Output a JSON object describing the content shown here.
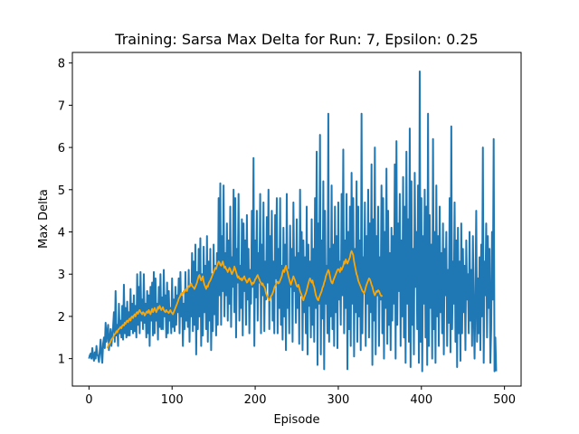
{
  "chart_data": {
    "type": "line",
    "title": "Training: Sarsa Max Delta for Run: 7, Epsilon: 0.25",
    "xlabel": "Episode",
    "ylabel": "Max Delta",
    "xlim": [
      -20,
      520
    ],
    "ylim": [
      0.35,
      8.25
    ],
    "xticks": [
      0,
      100,
      200,
      300,
      400,
      500
    ],
    "yticks": [
      1,
      2,
      3,
      4,
      5,
      6,
      7,
      8
    ],
    "grid": false,
    "legend": "none",
    "series": [
      {
        "color": "#1f77b4",
        "values": [
          1.0,
          1.08,
          1.12,
          1.0,
          1.25,
          1.05,
          0.95,
          1.15,
          1.0,
          1.3,
          1.1,
          1.05,
          0.92,
          1.2,
          1.45,
          1.1,
          0.9,
          1.35,
          1.5,
          1.25,
          1.85,
          1.4,
          1.6,
          1.8,
          1.2,
          1.45,
          1.7,
          1.3,
          1.55,
          1.75,
          2.1,
          1.4,
          2.6,
          1.55,
          1.8,
          1.3,
          2.3,
          1.6,
          1.9,
          1.5,
          2.25,
          1.45,
          2.75,
          1.6,
          2.2,
          1.5,
          2.35,
          1.55,
          2.1,
          1.55,
          2.65,
          1.7,
          2.3,
          1.6,
          2.5,
          1.65,
          2.25,
          1.5,
          3.0,
          1.8,
          2.7,
          1.6,
          3.05,
          1.9,
          2.4,
          1.7,
          3.0,
          1.85,
          2.3,
          1.5,
          2.6,
          1.6,
          2.5,
          1.3,
          2.7,
          1.9,
          2.8,
          1.55,
          3.05,
          1.6,
          2.9,
          1.9,
          2.3,
          1.45,
          2.7,
          1.75,
          3.0,
          1.7,
          2.45,
          1.7,
          3.1,
          2.0,
          2.5,
          1.5,
          2.8,
          1.6,
          2.6,
          1.9,
          2.2,
          1.6,
          2.9,
          1.75,
          2.4,
          1.65,
          2.7,
          1.8,
          2.5,
          2.1,
          2.9,
          1.6,
          3.05,
          2.0,
          2.55,
          1.3,
          2.3,
          1.7,
          3.05,
          1.9,
          2.6,
          1.75,
          3.1,
          1.4,
          2.7,
          2.0,
          3.5,
          1.65,
          3.3,
          1.8,
          3.7,
          1.1,
          3.05,
          1.7,
          3.6,
          2.0,
          3.85,
          1.3,
          3.0,
          1.55,
          3.65,
          2.1,
          3.2,
          1.7,
          3.9,
          1.4,
          3.3,
          1.9,
          3.6,
          1.2,
          3.0,
          1.65,
          3.7,
          2.05,
          3.2,
          1.55,
          3.5,
          1.8,
          4.8,
          2.5,
          5.15,
          1.8,
          3.9,
          2.6,
          5.1,
          2.0,
          3.5,
          2.5,
          4.2,
          1.9,
          3.8,
          2.3,
          4.6,
          1.75,
          3.4,
          2.7,
          5.0,
          2.1,
          4.8,
          1.5,
          3.6,
          2.8,
          4.9,
          1.9,
          3.2,
          2.2,
          4.3,
          1.55,
          4.2,
          2.6,
          3.8,
          1.8,
          4.4,
          2.4,
          3.6,
          1.6,
          3.1,
          2.3,
          4.5,
          2.7,
          5.75,
          1.3,
          3.8,
          2.45,
          4.5,
          1.9,
          3.5,
          2.8,
          4.9,
          1.6,
          3.7,
          2.5,
          4.7,
          1.65,
          3.3,
          2.4,
          4.35,
          2.8,
          5.0,
          1.7,
          3.9,
          2.5,
          4.5,
          1.9,
          3.3,
          1.6,
          4.4,
          2.9,
          4.8,
          1.6,
          3.6,
          2.2,
          4.8,
          1.8,
          3.2,
          1.45,
          4.1,
          2.0,
          3.7,
          1.2,
          4.9,
          2.2,
          3.1,
          1.6,
          4.15,
          2.7,
          3.6,
          1.4,
          4.7,
          2.6,
          3.4,
          1.85,
          4.3,
          2.2,
          3.5,
          1.35,
          5.0,
          2.5,
          4.0,
          1.2,
          3.8,
          2.1,
          3.4,
          1.6,
          4.6,
          1.1,
          3.7,
          2.25,
          3.3,
          1.5,
          4.3,
          1.8,
          3.6,
          1.4,
          4.8,
          2.2,
          5.9,
          0.85,
          4.2,
          2.3,
          6.3,
          1.1,
          3.8,
          1.95,
          5.2,
          0.75,
          4.5,
          2.3,
          3.2,
          1.6,
          6.8,
          1.4,
          3.6,
          2.0,
          5.1,
          1.7,
          3.7,
          1.3,
          4.6,
          2.1,
          3.9,
          1.25,
          4.7,
          2.4,
          3.3,
          1.8,
          4.9,
          2.5,
          5.95,
          1.6,
          3.8,
          2.2,
          4.9,
          0.75,
          4.0,
          1.7,
          4.6,
          1.3,
          5.4,
          2.3,
          4.8,
          1.05,
          3.6,
          2.1,
          5.2,
          1.4,
          4.6,
          2.0,
          3.8,
          1.2,
          6.8,
          1.6,
          3.4,
          2.6,
          4.7,
          1.3,
          3.9,
          2.3,
          5.0,
          1.5,
          4.2,
          2.1,
          5.6,
          0.85,
          4.3,
          1.9,
          6.0,
          1.1,
          3.9,
          2.5,
          4.6,
          1.3,
          3.4,
          2.4,
          5.1,
          1.6,
          4.8,
          1.0,
          4.0,
          2.2,
          5.5,
          1.35,
          4.5,
          1.8,
          3.5,
          1.2,
          4.1,
          1.9,
          3.9,
          2.3,
          5.6,
          1.0,
          6.15,
          1.8,
          4.2,
          2.6,
          4.9,
          1.3,
          3.8,
          2.0,
          5.3,
          1.5,
          4.6,
          0.9,
          5.9,
          2.3,
          4.3,
          1.4,
          6.45,
          0.8,
          5.2,
          1.8,
          3.6,
          1.1,
          5.4,
          2.7,
          4.0,
          1.7,
          5.1,
          0.9,
          7.8,
          1.4,
          4.8,
          0.7,
          3.9,
          2.3,
          5.0,
          1.5,
          4.6,
          0.85,
          6.8,
          1.3,
          4.4,
          2.2,
          3.7,
          1.0,
          6.2,
          1.7,
          4.0,
          0.9,
          5.1,
          2.0,
          3.9,
          1.3,
          4.6,
          2.1,
          3.5,
          1.6,
          4.2,
          1.1,
          3.6,
          2.5,
          4.0,
          1.3,
          3.1,
          1.85,
          4.8,
          1.15,
          6.5,
          1.7,
          3.3,
          2.3,
          4.7,
          1.4,
          3.8,
          0.8,
          4.1,
          1.6,
          3.3,
          0.95,
          4.2,
          1.6,
          3.6,
          2.1,
          3.2,
          1.2,
          3.8,
          2.4,
          3.0,
          1.6,
          4.0,
          1.9,
          3.1,
          1.3,
          3.9,
          2.2,
          1.0,
          2.5,
          4.5,
          1.4,
          2.9,
          1.6,
          3.4,
          1.2,
          3.7,
          2.0,
          6.0,
          0.9,
          3.3,
          2.5,
          4.2,
          1.5,
          3.9,
          2.2,
          3.6,
          0.9,
          1.7,
          4.0,
          2.4,
          6.2,
          0.7,
          1.5,
          0.7
        ]
      },
      {
        "color": "#ffa500",
        "x_start": 22,
        "values": [
          1.25,
          1.3,
          1.35,
          1.36,
          1.4,
          1.45,
          1.48,
          1.5,
          1.55,
          1.58,
          1.6,
          1.65,
          1.62,
          1.68,
          1.7,
          1.72,
          1.75,
          1.72,
          1.78,
          1.8,
          1.78,
          1.85,
          1.82,
          1.88,
          1.9,
          1.86,
          1.92,
          1.95,
          1.9,
          1.98,
          2.0,
          1.96,
          2.02,
          2.05,
          2.0,
          2.08,
          2.1,
          2.06,
          2.12,
          2.15,
          2.1,
          2.08,
          2.05,
          2.1,
          2.08,
          2.02,
          2.05,
          2.1,
          2.12,
          2.08,
          2.15,
          2.1,
          2.05,
          2.12,
          2.18,
          2.1,
          2.15,
          2.2,
          2.15,
          2.1,
          2.15,
          2.22,
          2.18,
          2.25,
          2.2,
          2.15,
          2.18,
          2.22,
          2.15,
          2.12,
          2.1,
          2.15,
          2.12,
          2.1,
          2.08,
          2.12,
          2.15,
          2.1,
          2.08,
          2.05,
          2.1,
          2.15,
          2.2,
          2.25,
          2.3,
          2.35,
          2.42,
          2.45,
          2.5,
          2.55,
          2.5,
          2.55,
          2.6,
          2.58,
          2.62,
          2.65,
          2.6,
          2.68,
          2.72,
          2.7,
          2.75,
          2.78,
          2.72,
          2.7,
          2.68,
          2.65,
          2.7,
          2.75,
          2.8,
          2.88,
          2.95,
          2.98,
          2.9,
          2.85,
          2.9,
          2.95,
          2.82,
          2.75,
          2.7,
          2.65,
          2.72,
          2.7,
          2.78,
          2.82,
          2.85,
          2.9,
          2.95,
          3.0,
          3.05,
          3.1,
          3.15,
          3.12,
          3.2,
          3.25,
          3.3,
          3.28,
          3.22,
          3.2,
          3.25,
          3.3,
          3.22,
          3.15,
          3.18,
          3.12,
          3.1,
          3.05,
          3.1,
          3.15,
          3.12,
          3.05,
          3.0,
          3.05,
          3.1,
          3.18,
          3.12,
          3.05,
          2.98,
          2.92,
          2.95,
          2.9,
          2.88,
          2.9,
          2.85,
          2.88,
          2.92,
          2.95,
          2.88,
          2.85,
          2.8,
          2.82,
          2.88,
          2.9,
          2.85,
          2.8,
          2.75,
          2.8,
          2.78,
          2.82,
          2.88,
          2.9,
          2.95,
          2.98,
          2.92,
          2.88,
          2.82,
          2.8,
          2.75,
          2.78,
          2.72,
          2.7,
          2.65,
          2.55,
          2.5,
          2.45,
          2.4,
          2.38,
          2.42,
          2.48,
          2.5,
          2.55,
          2.6,
          2.68,
          2.72,
          2.75,
          2.8,
          2.82,
          2.78,
          2.8,
          2.85,
          2.9,
          2.95,
          3.05,
          3.1,
          3.05,
          3.15,
          3.2,
          3.1,
          3.05,
          2.95,
          2.88,
          2.8,
          2.75,
          2.82,
          2.88,
          2.95,
          2.9,
          2.85,
          2.78,
          2.72,
          2.7,
          2.75,
          2.68,
          2.6,
          2.55,
          2.5,
          2.42,
          2.38,
          2.45,
          2.5,
          2.55,
          2.62,
          2.7,
          2.78,
          2.85,
          2.9,
          2.85,
          2.8,
          2.85,
          2.75,
          2.7,
          2.6,
          2.5,
          2.45,
          2.4,
          2.38,
          2.45,
          2.5,
          2.55,
          2.6,
          2.68,
          2.72,
          2.8,
          2.85,
          2.95,
          3.0,
          3.05,
          3.1,
          3.05,
          2.95,
          2.85,
          2.8,
          2.78,
          2.85,
          2.9,
          2.95,
          3.0,
          3.05,
          3.1,
          3.12,
          3.1,
          3.05,
          3.15,
          3.1,
          3.15,
          3.2,
          3.3,
          3.25,
          3.35,
          3.3,
          3.25,
          3.3,
          3.35,
          3.4,
          3.5,
          3.55,
          3.5,
          3.45,
          3.3,
          3.2,
          3.1,
          3.0,
          2.95,
          2.85,
          2.8,
          2.75,
          2.7,
          2.65,
          2.6,
          2.58,
          2.55,
          2.6,
          2.68,
          2.75,
          2.8,
          2.85,
          2.9,
          2.88,
          2.82,
          2.75,
          2.7,
          2.62,
          2.55,
          2.5,
          2.55,
          2.6,
          2.58,
          2.62,
          2.6,
          2.55,
          2.5,
          2.48,
          2.5
        ]
      }
    ]
  }
}
